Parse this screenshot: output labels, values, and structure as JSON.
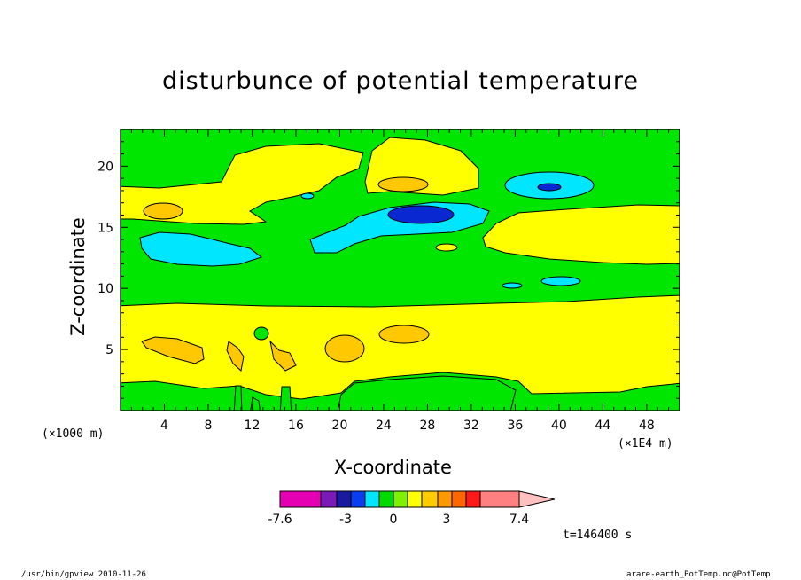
{
  "chart_data": {
    "type": "heatmap",
    "title": "disturbunce of potential temperature",
    "xlabel": "X-coordinate",
    "ylabel": "Z-coordinate",
    "x_unit_left": "(×1000 m)",
    "x_unit_right": "(×1E4 m)",
    "xlim": [
      0,
      51
    ],
    "ylim": [
      0,
      23
    ],
    "x_ticks": [
      4,
      8,
      12,
      16,
      20,
      24,
      28,
      32,
      36,
      40,
      44,
      48
    ],
    "y_ticks": [
      5,
      10,
      15,
      20
    ],
    "colorbar": {
      "min_label": "-7.6",
      "labels": [
        "-7.6",
        "-3",
        "0",
        "3",
        "7.4"
      ],
      "colors": [
        "#e600b4",
        "#7a1ab8",
        "#1a1aa0",
        "#0a3cf0",
        "#00e6ff",
        "#00dc00",
        "#7ef000",
        "#ffff00",
        "#ffcc00",
        "#ff9900",
        "#ff6600",
        "#ff1a1a",
        "#ff8080",
        "#ffc0c0"
      ]
    },
    "time_label": "t=146400 s",
    "colors": {
      "background": "#00e600",
      "positive": "#ffff00",
      "positive_strong": "#ffc800",
      "negative": "#00e6ff",
      "negative_strong": "#0a28d2"
    }
  },
  "footer": {
    "left": "/usr/bin/gpview   2010-11-26",
    "right": "arare-earth_PotTemp.nc@PotTemp"
  }
}
